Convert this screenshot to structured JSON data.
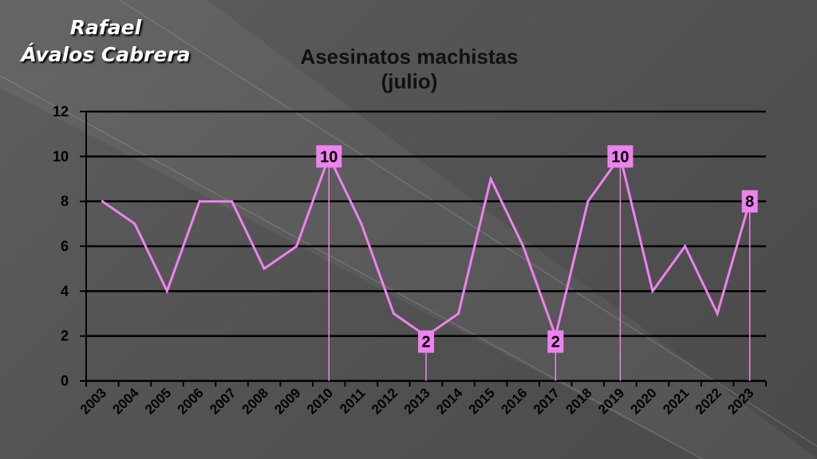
{
  "author": {
    "line1": "Rafael",
    "line2": "Ávalos Cabrera"
  },
  "chart_data": {
    "type": "line",
    "title": [
      "Asesinatos machistas",
      "(julio)"
    ],
    "xlabel": "",
    "ylabel": "",
    "categories": [
      "2003",
      "2004",
      "2005",
      "2006",
      "2007",
      "2008",
      "2009",
      "2010",
      "2011",
      "2012",
      "2013",
      "2014",
      "2015",
      "2016",
      "2017",
      "2018",
      "2019",
      "2020",
      "2021",
      "2022",
      "2023"
    ],
    "series": [
      {
        "values": [
          8,
          7,
          4,
          8,
          8,
          5,
          6,
          10,
          7,
          3,
          2,
          3,
          9,
          6,
          2,
          8,
          10,
          4,
          6,
          3,
          8
        ]
      }
    ],
    "ylim": [
      0,
      12
    ],
    "yticks": [
      0,
      2,
      4,
      6,
      8,
      10,
      12
    ],
    "grid": true,
    "legend": "none",
    "data_labels": [
      {
        "category": "2010",
        "value": 10,
        "text": "10"
      },
      {
        "category": "2013",
        "value": 2,
        "text": "2"
      },
      {
        "category": "2017",
        "value": 2,
        "text": "2"
      },
      {
        "category": "2019",
        "value": 10,
        "text": "10"
      },
      {
        "category": "2023",
        "value": 8,
        "text": "8"
      }
    ],
    "colors": {
      "line": "#ee82ee",
      "label_bg": "#ee82ee",
      "grid": "#000000"
    }
  }
}
